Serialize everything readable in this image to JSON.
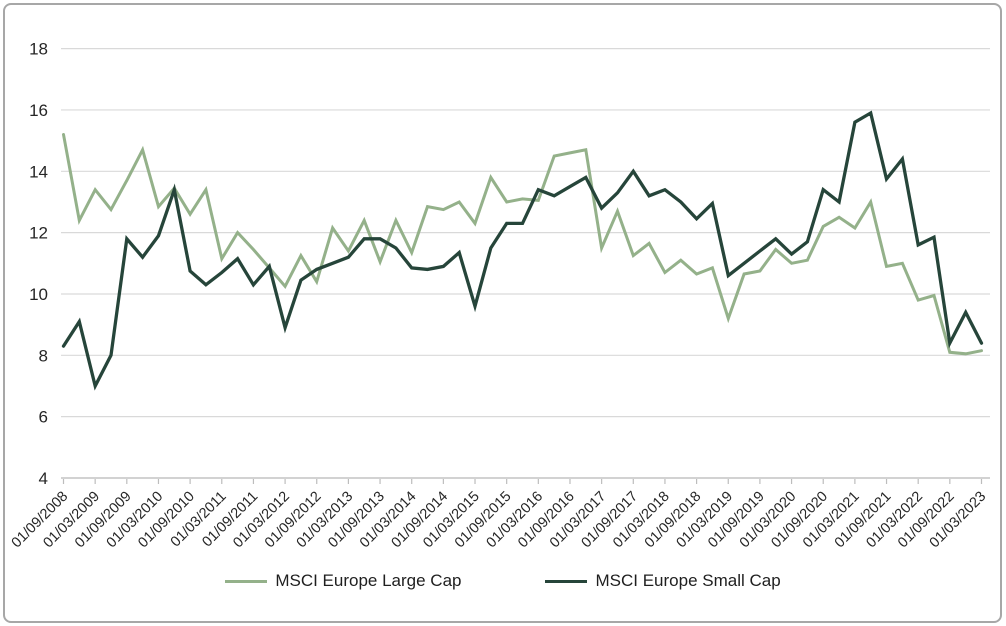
{
  "chart_data": {
    "type": "line",
    "title": "",
    "xlabel": "",
    "ylabel": "",
    "grid": "horizontal",
    "legend_position": "bottom",
    "ylim": [
      4,
      18
    ],
    "y_ticks": [
      4,
      6,
      8,
      10,
      12,
      14,
      16,
      18
    ],
    "x_label_frequency": "semiannual",
    "data_frequency": "quarterly",
    "points_per_label_interval": 2,
    "x_labels": [
      "01/09/2008",
      "01/03/2009",
      "01/09/2009",
      "01/03/2010",
      "01/09/2010",
      "01/03/2011",
      "01/09/2011",
      "01/03/2012",
      "01/09/2012",
      "01/03/2013",
      "01/09/2013",
      "01/03/2014",
      "01/09/2014",
      "01/03/2015",
      "01/09/2015",
      "01/03/2016",
      "01/09/2016",
      "01/03/2017",
      "01/09/2017",
      "01/03/2018",
      "01/09/2018",
      "01/03/2019",
      "01/09/2019",
      "01/03/2020",
      "01/09/2020",
      "01/03/2021",
      "01/09/2021",
      "01/03/2022",
      "01/09/2022",
      "01/03/2023"
    ],
    "series": [
      {
        "name": "MSCI Europe Large Cap",
        "color": "#94b18a",
        "values": [
          15.2,
          12.4,
          13.4,
          12.75,
          13.7,
          14.7,
          12.85,
          13.45,
          12.6,
          13.4,
          11.15,
          12.0,
          11.45,
          10.85,
          10.25,
          11.25,
          10.4,
          12.15,
          11.4,
          12.4,
          11.05,
          12.4,
          11.35,
          12.85,
          12.75,
          13.0,
          12.3,
          13.8,
          13.0,
          13.1,
          13.05,
          14.5,
          14.6,
          14.7,
          11.5,
          12.7,
          11.25,
          11.65,
          10.7,
          11.1,
          10.65,
          10.85,
          9.2,
          10.65,
          10.75,
          11.45,
          11.0,
          11.1,
          12.2,
          12.5,
          12.15,
          13.0,
          10.9,
          11.0,
          9.8,
          9.95,
          8.1,
          8.05,
          8.15
        ]
      },
      {
        "name": "MSCI Europe Small Cap",
        "color": "#26453a",
        "values": [
          8.3,
          9.1,
          7.0,
          8.0,
          11.8,
          11.2,
          11.9,
          13.4,
          10.75,
          10.3,
          10.7,
          11.15,
          10.3,
          10.9,
          8.9,
          10.45,
          10.8,
          11.0,
          11.2,
          11.8,
          11.8,
          11.5,
          10.85,
          10.8,
          10.9,
          11.35,
          9.6,
          11.5,
          12.3,
          12.3,
          13.4,
          13.2,
          13.5,
          13.8,
          12.8,
          13.3,
          14.0,
          13.2,
          13.4,
          13.0,
          12.45,
          12.95,
          10.6,
          11.0,
          11.4,
          11.8,
          11.3,
          11.7,
          13.4,
          13.0,
          15.6,
          15.9,
          13.75,
          14.4,
          11.6,
          11.85,
          8.4,
          9.4,
          8.4
        ]
      }
    ],
    "colors": {
      "gridline": "#d9d9d9",
      "axis_line": "#c4c4c4",
      "tick_mark": "#bdbdbd",
      "tick_text": "#262626",
      "frame_border": "#a7a7a7",
      "background": "#ffffff"
    }
  }
}
